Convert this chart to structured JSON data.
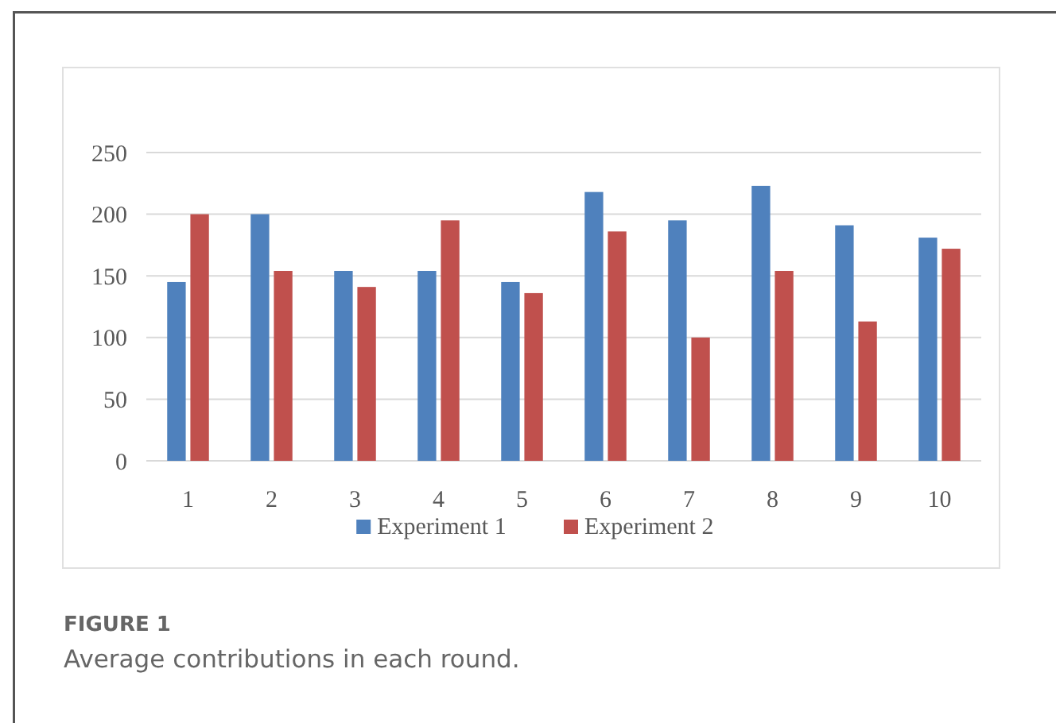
{
  "chart_data": {
    "type": "bar",
    "categories": [
      "1",
      "2",
      "3",
      "4",
      "5",
      "6",
      "7",
      "8",
      "9",
      "10"
    ],
    "series": [
      {
        "name": "Experiment 1",
        "color": "#4f81bd",
        "values": [
          145,
          200,
          154,
          154,
          145,
          218,
          195,
          223,
          191,
          181
        ]
      },
      {
        "name": "Experiment 2",
        "color": "#c0504d",
        "values": [
          200,
          154,
          141,
          195,
          136,
          186,
          100,
          154,
          113,
          172
        ]
      }
    ],
    "ylim": [
      0,
      250
    ],
    "yticks": [
      0,
      50,
      100,
      150,
      200,
      250
    ],
    "grid": "y",
    "legend": "bottom",
    "annotations": [
      "FIGURE 1",
      "Average contributions in each round."
    ]
  }
}
